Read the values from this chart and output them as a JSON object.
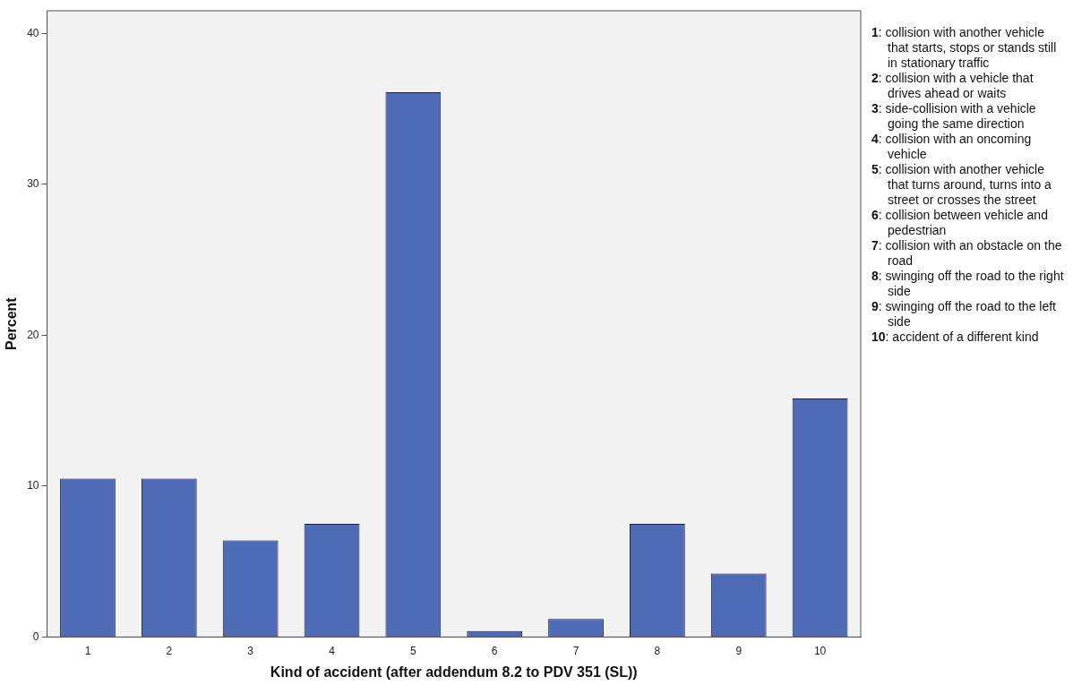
{
  "chart_data": {
    "type": "bar",
    "xlabel": "Kind of accident (after addendum 8.2 to PDV 351 (SL))",
    "ylabel": "Percent",
    "categories": [
      "1",
      "2",
      "3",
      "4",
      "5",
      "6",
      "7",
      "8",
      "9",
      "10"
    ],
    "values": [
      10.5,
      10.5,
      6.4,
      7.5,
      36.1,
      0.4,
      1.2,
      7.5,
      4.2,
      15.8
    ],
    "color": "#4f6bb8",
    "ylim": [
      0,
      41.5
    ],
    "yticks": [
      0,
      10,
      20,
      30,
      40
    ],
    "grid": false,
    "legend": false,
    "annotations": [
      "1: collision with another vehicle that starts, stops or stands still in stationary traffic",
      "2: collision with a vehicle that drives ahead or waits",
      "3: side-collision with a vehicle going the same direction",
      "4: collision with an oncoming vehicle",
      "5: collision with another vehicle that turns around, turns into a street or crosses the street",
      "6: collision between vehicle and pedestrian",
      "7: collision with an obstacle on the road",
      "8: swinging off the road to the right side",
      "9: swinging off the road to the left side",
      "10: accident of a different kind"
    ]
  }
}
